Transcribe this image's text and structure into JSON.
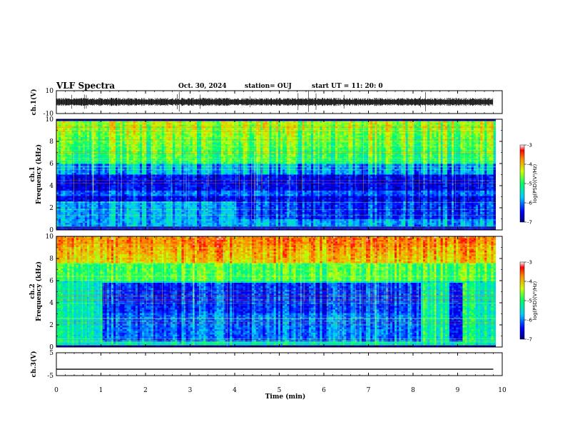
{
  "header": {
    "title": "VLF Spectra",
    "date": "Oct. 30, 2024",
    "station": "station= OUJ",
    "start": "start  UT  =    11: 20: 0"
  },
  "chart_data": [
    {
      "type": "line",
      "name": "ch1-waveform",
      "ylabel": "ch.1(V)",
      "ylim": [
        -10,
        10
      ],
      "yticks": [
        "10",
        "-10"
      ],
      "xlim": [
        0,
        10
      ]
    },
    {
      "type": "heatmap",
      "name": "ch1-spectrogram",
      "ylabel_top": "ch.1",
      "ylabel": "Frequency  (kHz)",
      "ylim": [
        0,
        10
      ],
      "yticks": [
        "0",
        "2",
        "4",
        "6",
        "8",
        "10"
      ],
      "xlim": [
        0,
        9.85
      ],
      "colorbar": {
        "label": "log(PSD)(V²/Hz)",
        "range": [
          -7,
          -3
        ],
        "ticks": [
          "-3",
          "-4",
          "-5",
          "-6",
          "-7"
        ]
      }
    },
    {
      "type": "heatmap",
      "name": "ch2-spectrogram",
      "ylabel_top": "ch.2",
      "ylabel": "Frequency  (kHz)",
      "ylim": [
        0,
        10
      ],
      "yticks": [
        "0",
        "2",
        "4",
        "6",
        "8",
        "10"
      ],
      "xlim": [
        0,
        9.85
      ],
      "colorbar": {
        "label": "log(PSD)(V²/Hz)",
        "range": [
          -7,
          -3
        ],
        "ticks": [
          "-3",
          "-4",
          "-5",
          "-6",
          "-7"
        ]
      }
    },
    {
      "type": "line",
      "name": "ch3-waveform",
      "ylabel": "ch.3(V)",
      "ylim": [
        -5,
        5
      ],
      "yticks": [
        "5",
        "-5"
      ],
      "xlim": [
        0,
        10
      ],
      "constant_value": -2.2,
      "xlabel": "Time  (min)",
      "xticks": [
        "0",
        "1",
        "2",
        "3",
        "4",
        "5",
        "6",
        "7",
        "8",
        "9",
        "10"
      ]
    }
  ]
}
